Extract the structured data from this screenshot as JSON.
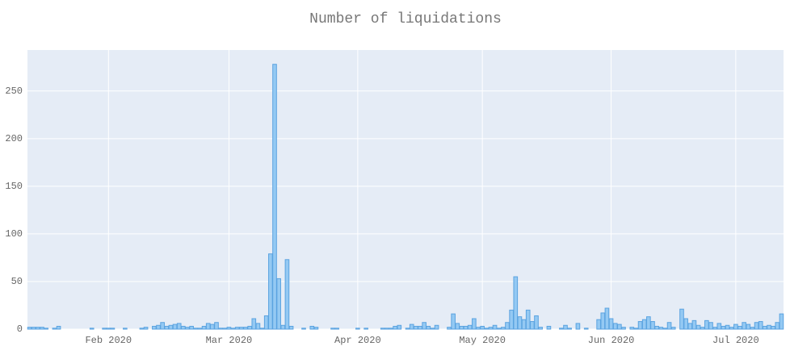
{
  "chart_data": {
    "type": "bar",
    "title": "Number of liquidations",
    "categories": [
      null,
      null,
      null,
      null,
      null,
      null,
      null,
      null,
      null,
      null,
      null,
      null,
      null,
      null,
      null,
      null,
      null,
      null,
      null,
      null,
      null,
      null,
      null,
      null,
      null,
      null,
      null,
      null,
      null,
      null,
      null,
      null,
      null,
      null,
      null,
      null,
      null,
      null,
      null,
      null,
      null,
      null,
      null,
      null,
      null,
      null,
      null,
      null,
      null,
      null,
      null,
      null,
      null,
      null,
      null,
      null,
      null,
      null,
      null,
      null,
      null,
      null,
      null,
      null,
      null,
      null,
      null,
      null,
      null,
      null,
      null,
      null,
      null,
      null,
      null,
      null,
      null,
      null,
      null,
      null,
      null,
      null,
      null,
      null,
      null,
      null,
      null,
      null,
      null,
      null,
      null,
      null,
      null,
      null,
      null,
      null,
      null,
      null,
      null,
      null,
      null,
      null,
      null,
      null,
      null,
      null,
      null,
      null,
      null,
      null,
      null,
      null,
      null,
      null,
      null,
      null,
      null,
      null,
      null,
      null,
      null,
      null,
      null,
      null,
      null,
      null,
      null,
      null,
      null,
      null,
      null,
      null,
      null,
      null,
      null,
      null,
      null,
      null,
      null,
      null,
      null,
      null,
      null,
      null,
      null,
      null,
      null,
      null,
      null,
      null,
      null,
      null,
      null,
      null,
      null,
      null,
      null,
      null,
      null,
      null,
      null,
      null,
      null,
      null,
      null,
      null,
      null,
      null,
      null,
      null,
      null,
      null,
      null,
      null,
      null,
      null,
      null,
      null,
      null,
      null,
      null,
      null
    ],
    "values": [
      2,
      2,
      2,
      2,
      1,
      0,
      1,
      3,
      0,
      0,
      0,
      0,
      0,
      0,
      0,
      1,
      0,
      0,
      1,
      1,
      1,
      0,
      0,
      1,
      0,
      0,
      0,
      1,
      2,
      0,
      3,
      4,
      7,
      3,
      4,
      5,
      6,
      3,
      2,
      3,
      1,
      1,
      3,
      6,
      5,
      7,
      1,
      1,
      2,
      1,
      2,
      2,
      2,
      3,
      11,
      6,
      1,
      14,
      79,
      278,
      53,
      4,
      73,
      3,
      0,
      0,
      1,
      0,
      3,
      2,
      0,
      0,
      0,
      1,
      1,
      0,
      0,
      0,
      0,
      1,
      0,
      1,
      0,
      0,
      0,
      1,
      1,
      1,
      3,
      4,
      0,
      1,
      5,
      3,
      3,
      7,
      3,
      1,
      4,
      0,
      0,
      2,
      16,
      6,
      3,
      3,
      4,
      11,
      2,
      3,
      1,
      2,
      4,
      1,
      2,
      7,
      20,
      55,
      13,
      10,
      20,
      8,
      14,
      2,
      0,
      3,
      0,
      0,
      1,
      4,
      1,
      0,
      6,
      0,
      1,
      0,
      0,
      10,
      17,
      22,
      11,
      6,
      5,
      2,
      0,
      2,
      1,
      8,
      10,
      13,
      8,
      3,
      2,
      1,
      7,
      2,
      0,
      21,
      11,
      6,
      9,
      4,
      2,
      9,
      7,
      2,
      6,
      3,
      4,
      2,
      5,
      3,
      7,
      5,
      2,
      7,
      8,
      3,
      4,
      3,
      7,
      16
    ],
    "color": "#94c9f3",
    "edge_color": "#5ba3e0",
    "xticks": [
      {
        "value": 19,
        "label": "Feb 2020"
      },
      {
        "value": 48,
        "label": "Mar 2020"
      },
      {
        "value": 79,
        "label": "Apr 2020"
      },
      {
        "value": 109,
        "label": "May 2020"
      },
      {
        "value": 140,
        "label": "Jun 2020"
      },
      {
        "value": 170,
        "label": "Jul 2020"
      }
    ],
    "ylim": [
      0,
      293
    ],
    "yticks": [
      0,
      50,
      100,
      150,
      200,
      250
    ],
    "grid": true
  }
}
